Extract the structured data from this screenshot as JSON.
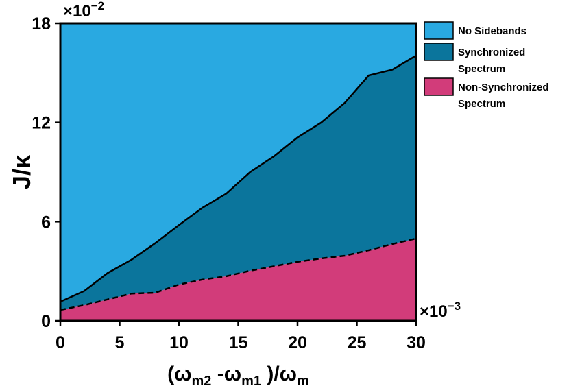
{
  "chart_data": {
    "type": "area",
    "x_label": [
      "(ω",
      "m2",
      " -ω",
      "m1",
      " )/ω",
      "m"
    ],
    "y_label": "J/κ",
    "y_multiplier": [
      "×10",
      "−2"
    ],
    "x_multiplier": [
      "×10",
      "−3"
    ],
    "x": [
      0,
      2,
      4,
      6,
      8,
      10,
      12,
      14,
      16,
      18,
      20,
      22,
      24,
      26,
      28,
      30
    ],
    "series": [
      {
        "name": "Non-Synchronized Spectrum",
        "color": "#d23c7a",
        "values": [
          0.66,
          0.95,
          1.3,
          1.65,
          1.7,
          2.2,
          2.5,
          2.7,
          3.03,
          3.3,
          3.57,
          3.78,
          3.94,
          4.27,
          4.65,
          4.98
        ]
      },
      {
        "name": "Synchronized Spectrum",
        "color": "#0b759c",
        "values": [
          1.16,
          1.8,
          2.9,
          3.7,
          4.7,
          5.8,
          6.85,
          7.7,
          9.0,
          9.95,
          11.1,
          12.0,
          13.2,
          14.85,
          15.2,
          16.05
        ]
      },
      {
        "name": "No Sidebands",
        "color": "#29a9e1"
      }
    ],
    "xlim": [
      0,
      30
    ],
    "xticks": [
      0,
      5,
      10,
      15,
      20,
      25,
      30
    ],
    "ylim": [
      0,
      18
    ],
    "yticks": [
      0,
      6,
      12,
      18
    ]
  }
}
